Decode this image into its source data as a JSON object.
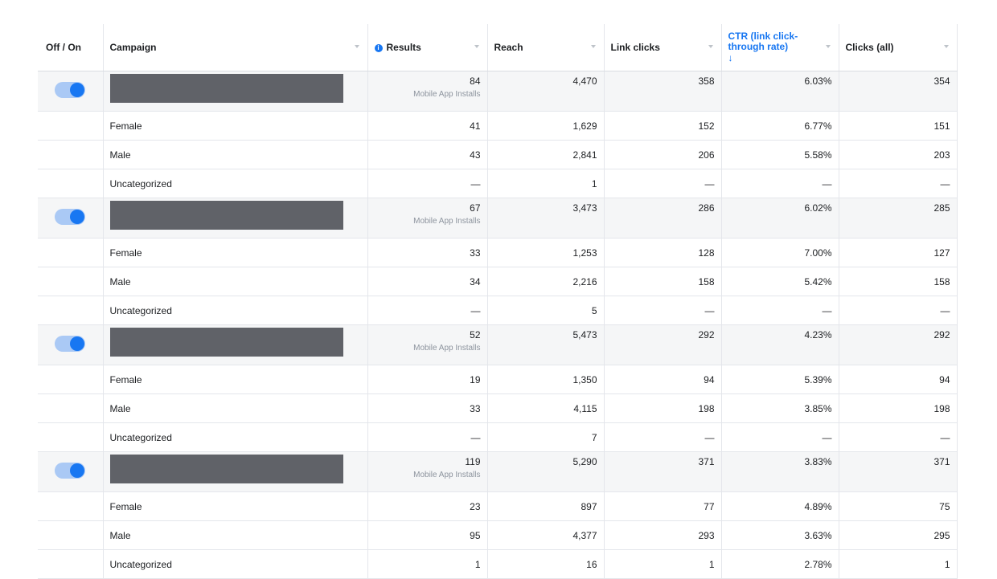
{
  "table": {
    "columns": [
      "Off / On",
      "Campaign",
      "Results",
      "Reach",
      "Link clicks",
      "CTR (link click-through rate)",
      "Clicks (all)"
    ],
    "rows": [
      {
        "result_type": "Mobile App Installs",
        "cells": [
          "84",
          "4,470",
          "358",
          "6.03%",
          "354"
        ]
      },
      {
        "label": "Female",
        "cells": [
          "41",
          "1,629",
          "152",
          "6.77%",
          "151"
        ]
      },
      {
        "label": "Male",
        "cells": [
          "43",
          "2,841",
          "206",
          "5.58%",
          "203"
        ]
      },
      {
        "label": "Uncategorized",
        "cells": [
          "—",
          "1",
          "—",
          "—",
          "—"
        ]
      },
      {
        "result_type": "Mobile App Installs",
        "cells": [
          "67",
          "3,473",
          "286",
          "6.02%",
          "285"
        ]
      },
      {
        "label": "Female",
        "cells": [
          "33",
          "1,253",
          "128",
          "7.00%",
          "127"
        ]
      },
      {
        "label": "Male",
        "cells": [
          "34",
          "2,216",
          "158",
          "5.42%",
          "158"
        ]
      },
      {
        "label": "Uncategorized",
        "cells": [
          "—",
          "5",
          "—",
          "—",
          "—"
        ]
      },
      {
        "result_type": "Mobile App Installs",
        "cells": [
          "52",
          "5,473",
          "292",
          "4.23%",
          "292"
        ]
      },
      {
        "label": "Female",
        "cells": [
          "19",
          "1,350",
          "94",
          "5.39%",
          "94"
        ]
      },
      {
        "label": "Male",
        "cells": [
          "33",
          "4,115",
          "198",
          "3.85%",
          "198"
        ]
      },
      {
        "label": "Uncategorized",
        "cells": [
          "—",
          "7",
          "—",
          "—",
          "—"
        ]
      },
      {
        "result_type": "Mobile App Installs",
        "cells": [
          "119",
          "5,290",
          "371",
          "3.83%",
          "371"
        ]
      },
      {
        "label": "Female",
        "cells": [
          "23",
          "897",
          "77",
          "4.89%",
          "75"
        ]
      },
      {
        "label": "Male",
        "cells": [
          "95",
          "4,377",
          "293",
          "3.63%",
          "295"
        ]
      },
      {
        "label": "Uncategorized",
        "cells": [
          "1",
          "16",
          "1",
          "2.78%",
          "1"
        ]
      }
    ]
  }
}
